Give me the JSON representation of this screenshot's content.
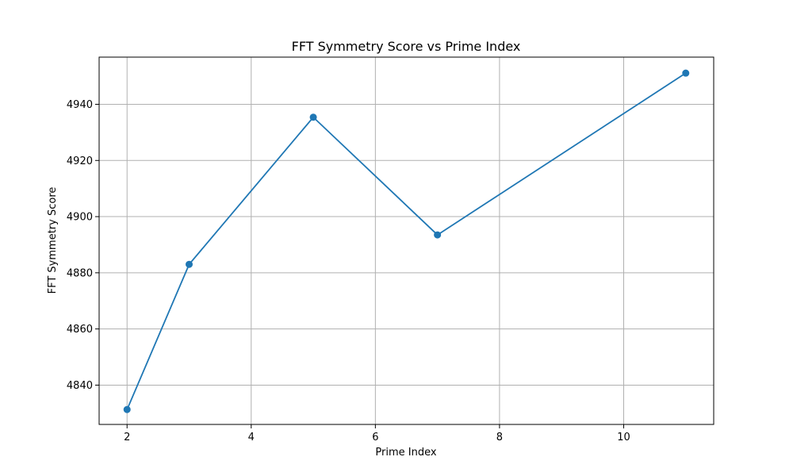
{
  "chart_data": {
    "type": "line",
    "title": "FFT Symmetry Score vs Prime Index",
    "xlabel": "Prime Index",
    "ylabel": "FFT Symmetry Score",
    "x": [
      2,
      3,
      5,
      7,
      11
    ],
    "series": [
      {
        "values": [
          4831.3,
          4883.0,
          4935.4,
          4893.5,
          4951.1
        ],
        "color": "#1f77b4",
        "marker": "circle"
      }
    ],
    "xlim": [
      1.55,
      11.45
    ],
    "ylim": [
      4826.0,
      4956.8
    ],
    "xticks": [
      2,
      4,
      6,
      8,
      10
    ],
    "yticks": [
      4840,
      4860,
      4880,
      4900,
      4920,
      4940
    ],
    "grid": true
  }
}
